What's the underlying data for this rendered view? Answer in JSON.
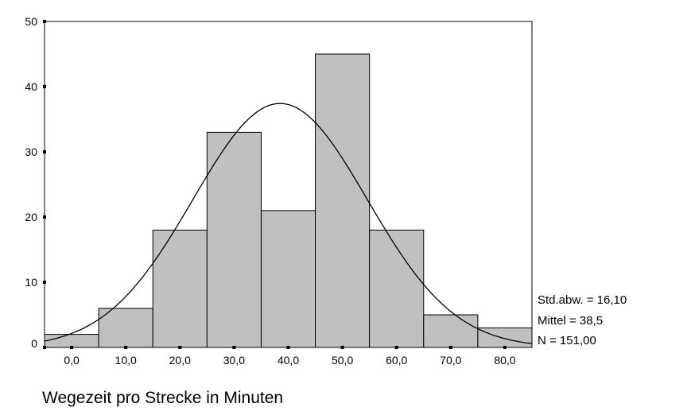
{
  "chart_data": {
    "type": "bar",
    "subtype": "histogram",
    "xlabel": "Wegezeit pro Strecke in Minuten",
    "bins": [
      {
        "center": 0,
        "value": 2
      },
      {
        "center": 10,
        "value": 6
      },
      {
        "center": 20,
        "value": 18
      },
      {
        "center": 30,
        "value": 33
      },
      {
        "center": 40,
        "value": 21
      },
      {
        "center": 50,
        "value": 45
      },
      {
        "center": 60,
        "value": 18
      },
      {
        "center": 70,
        "value": 5
      },
      {
        "center": 80,
        "value": 3
      }
    ],
    "bin_width": 10,
    "xlim": [
      -5,
      85
    ],
    "ylim": [
      0,
      50
    ],
    "x_ticks": [
      {
        "value": 0,
        "label": "0,0"
      },
      {
        "value": 10,
        "label": "10,0"
      },
      {
        "value": 20,
        "label": "20,0"
      },
      {
        "value": 30,
        "label": "30,0"
      },
      {
        "value": 40,
        "label": "40,0"
      },
      {
        "value": 50,
        "label": "50,0"
      },
      {
        "value": 60,
        "label": "60,0"
      },
      {
        "value": 70,
        "label": "70,0"
      },
      {
        "value": 80,
        "label": "80,0"
      }
    ],
    "y_ticks": [
      {
        "value": 0,
        "label": "0"
      },
      {
        "value": 10,
        "label": "10"
      },
      {
        "value": 20,
        "label": "20"
      },
      {
        "value": 30,
        "label": "30"
      },
      {
        "value": 40,
        "label": "40"
      },
      {
        "value": 50,
        "label": "50"
      }
    ],
    "normal_curve": {
      "mean": 38.5,
      "sd": 16.1,
      "n": 151
    },
    "stats_labels": [
      "Std.abw. = 16,10",
      "Mittel = 38,5",
      "N = 151,00"
    ],
    "bar_color": "#c0c0c0",
    "line_color": "#000000",
    "grid": false
  }
}
